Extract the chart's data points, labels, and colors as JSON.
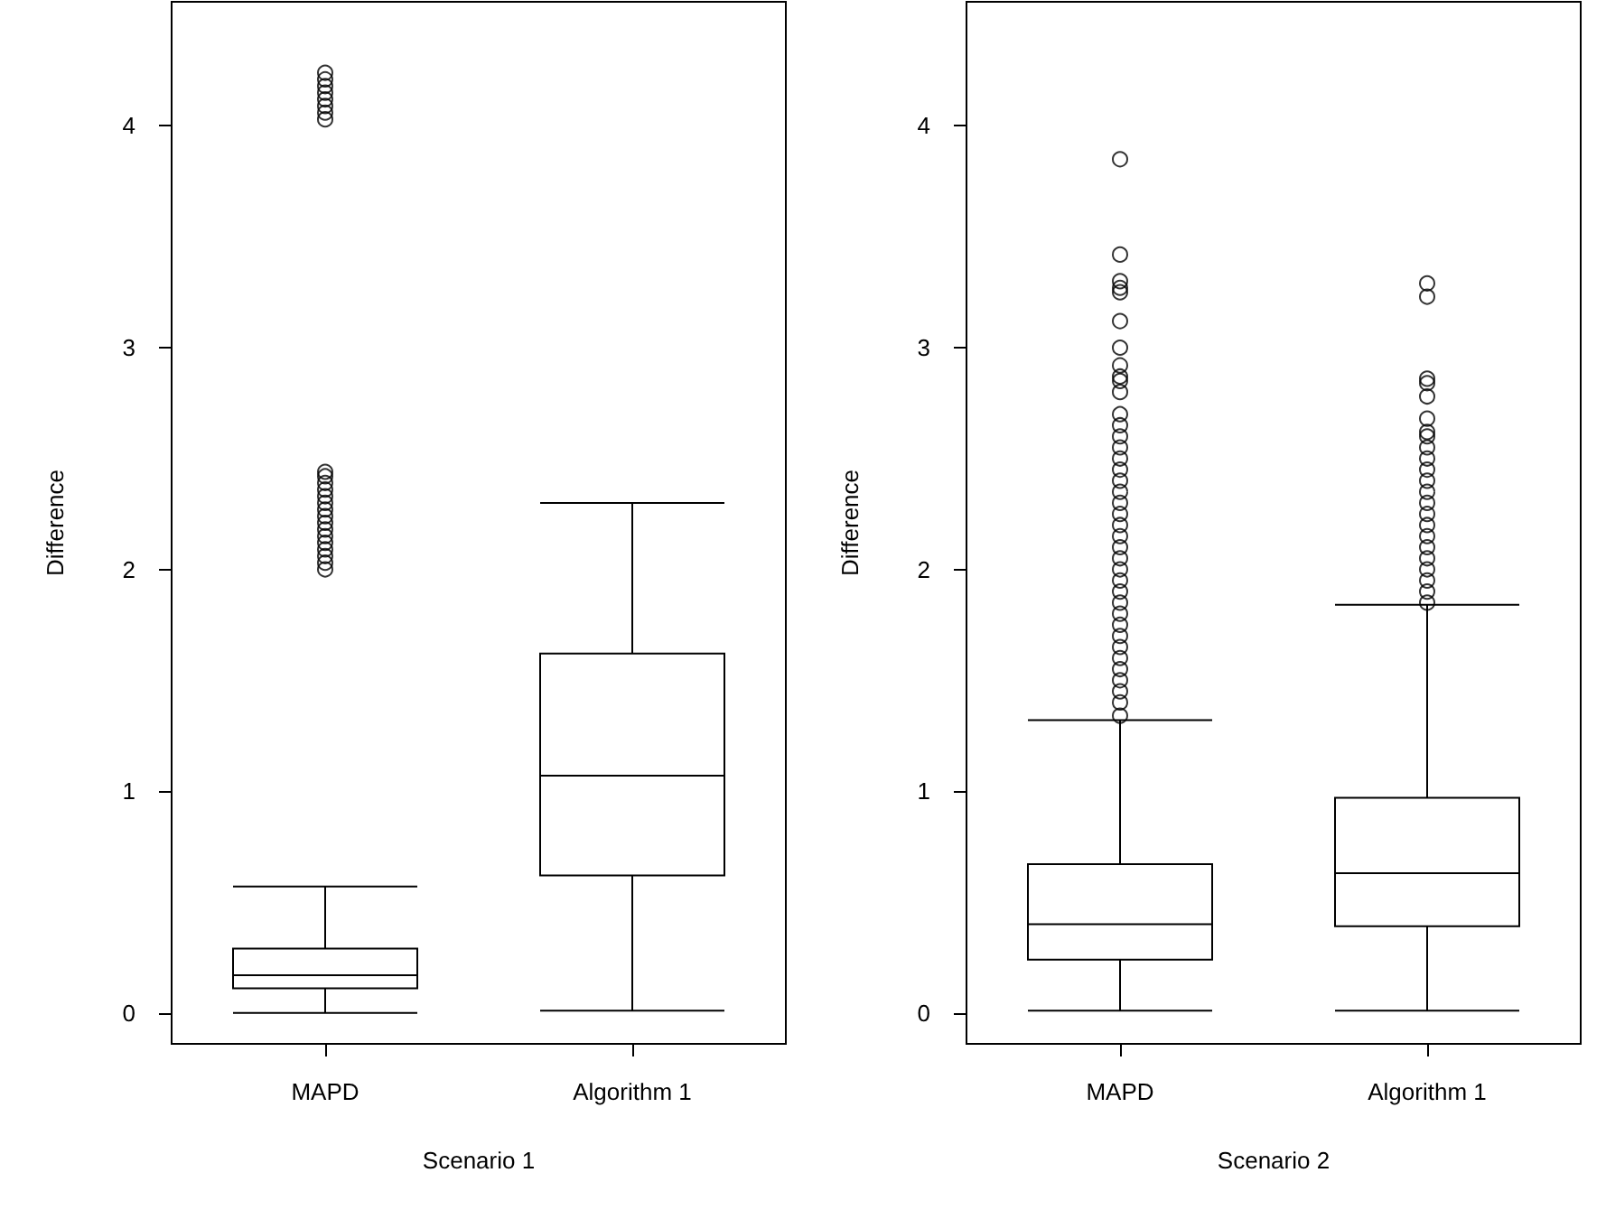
{
  "chart_data": [
    {
      "type": "box",
      "xlabel": "Scenario 1",
      "ylabel": "Difference",
      "categories": [
        "MAPD",
        "Algorithm 1"
      ],
      "ylim": [
        -0.14,
        4.56
      ],
      "yticks": [
        0,
        1,
        2,
        3,
        4
      ],
      "grid": false,
      "marker": "circle",
      "series": [
        {
          "color": "#000000",
          "boxes": [
            {
              "low": 0,
              "q1": 0.11,
              "median": 0.17,
              "q3": 0.29,
              "high": 0.57,
              "outliers": [
                2.0,
                2.03,
                2.06,
                2.09,
                2.12,
                2.15,
                2.18,
                2.21,
                2.24,
                2.27,
                2.3,
                2.33,
                2.36,
                2.39,
                2.42,
                2.44,
                4.03,
                4.06,
                4.09,
                4.12,
                4.15,
                4.18,
                4.21,
                4.24
              ]
            },
            {
              "low": 0.01,
              "q1": 0.62,
              "median": 1.07,
              "q3": 1.62,
              "high": 2.3
            }
          ]
        }
      ]
    },
    {
      "type": "box",
      "xlabel": "Scenario 2",
      "ylabel": "Difference",
      "categories": [
        "MAPD",
        "Algorithm 1"
      ],
      "ylim": [
        -0.14,
        4.56
      ],
      "yticks": [
        0,
        1,
        2,
        3,
        4
      ],
      "grid": false,
      "marker": "circle",
      "series": [
        {
          "color": "#000000",
          "boxes": [
            {
              "low": 0.01,
              "q1": 0.24,
              "median": 0.4,
              "q3": 0.67,
              "high": 1.32,
              "outliers": [
                1.34,
                1.4,
                1.45,
                1.5,
                1.55,
                1.6,
                1.65,
                1.7,
                1.75,
                1.8,
                1.85,
                1.9,
                1.95,
                2.0,
                2.05,
                2.1,
                2.15,
                2.2,
                2.25,
                2.3,
                2.35,
                2.4,
                2.45,
                2.5,
                2.55,
                2.6,
                2.65,
                2.7,
                2.8,
                2.85,
                2.87,
                2.92,
                3.0,
                3.12,
                3.25,
                3.27,
                3.3,
                3.42,
                3.85
              ]
            },
            {
              "low": 0.01,
              "q1": 0.39,
              "median": 0.63,
              "q3": 0.97,
              "high": 1.84,
              "outliers": [
                1.85,
                1.9,
                1.95,
                2.0,
                2.05,
                2.1,
                2.15,
                2.2,
                2.25,
                2.3,
                2.35,
                2.4,
                2.45,
                2.5,
                2.55,
                2.6,
                2.62,
                2.68,
                2.78,
                2.84,
                2.86,
                3.23,
                3.29
              ]
            }
          ]
        }
      ]
    }
  ]
}
